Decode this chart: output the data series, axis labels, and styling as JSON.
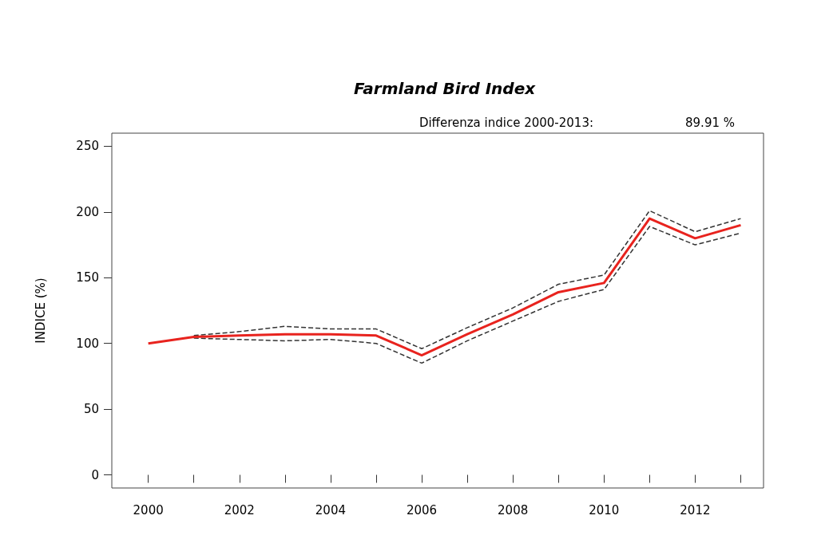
{
  "chart_data": {
    "type": "line",
    "title": "Farmland Bird Index",
    "ylabel": "INDICE (%)",
    "annotations": [
      "Differenza indice 2000-2013:",
      "89.91 %"
    ],
    "x": [
      2000,
      2001,
      2002,
      2003,
      2004,
      2005,
      2006,
      2007,
      2008,
      2009,
      2010,
      2011,
      2012,
      2013
    ],
    "series": [
      {
        "color": "#333333",
        "line_style": "dashed",
        "values": [
          null,
          104,
          103,
          102,
          103,
          100,
          85,
          102,
          117,
          132,
          141,
          189,
          175,
          184
        ]
      },
      {
        "color": "#333333",
        "line_style": "dashed",
        "values": [
          null,
          106,
          109,
          113,
          111,
          111,
          96,
          112,
          127,
          145,
          152,
          201,
          185,
          195
        ]
      },
      {
        "color": "#e8231e",
        "values": [
          100,
          105,
          106,
          107,
          107,
          106,
          91,
          107,
          122,
          139,
          146,
          195,
          180,
          190
        ]
      }
    ],
    "xlim": [
      1999.2,
      2013.5
    ],
    "xticks": [
      2000,
      {
        "value": 2001,
        "label": null
      },
      2002,
      {
        "value": 2003,
        "label": null
      },
      2004,
      {
        "value": 2005,
        "label": null
      },
      2006,
      {
        "value": 2007,
        "label": null
      },
      2008,
      {
        "value": 2009,
        "label": null
      },
      2010,
      {
        "value": 2011,
        "label": null
      },
      2012,
      {
        "value": 2013,
        "label": null
      }
    ],
    "ylim": [
      -10,
      260
    ],
    "yticks": [
      0,
      50,
      100,
      150,
      200,
      250
    ],
    "grid": false,
    "marker": "none",
    "line_style": "solid"
  }
}
